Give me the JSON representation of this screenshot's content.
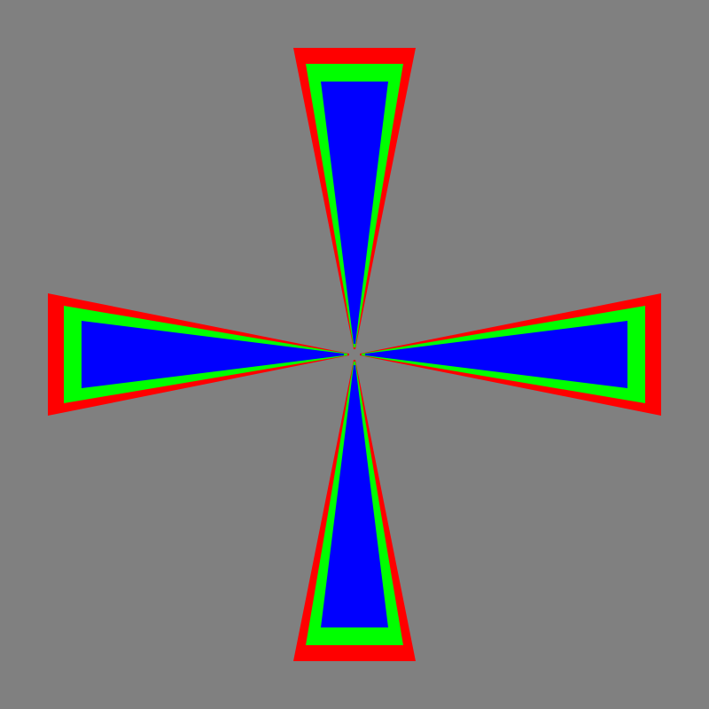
{
  "scene": {
    "background_color": "#808080",
    "arms": [
      "top",
      "right",
      "bottom",
      "left"
    ],
    "layers": [
      {
        "name": "outer",
        "color": "#ff0000"
      },
      {
        "name": "middle",
        "color": "#00ff00"
      },
      {
        "name": "inner",
        "color": "#0000ff"
      }
    ]
  }
}
